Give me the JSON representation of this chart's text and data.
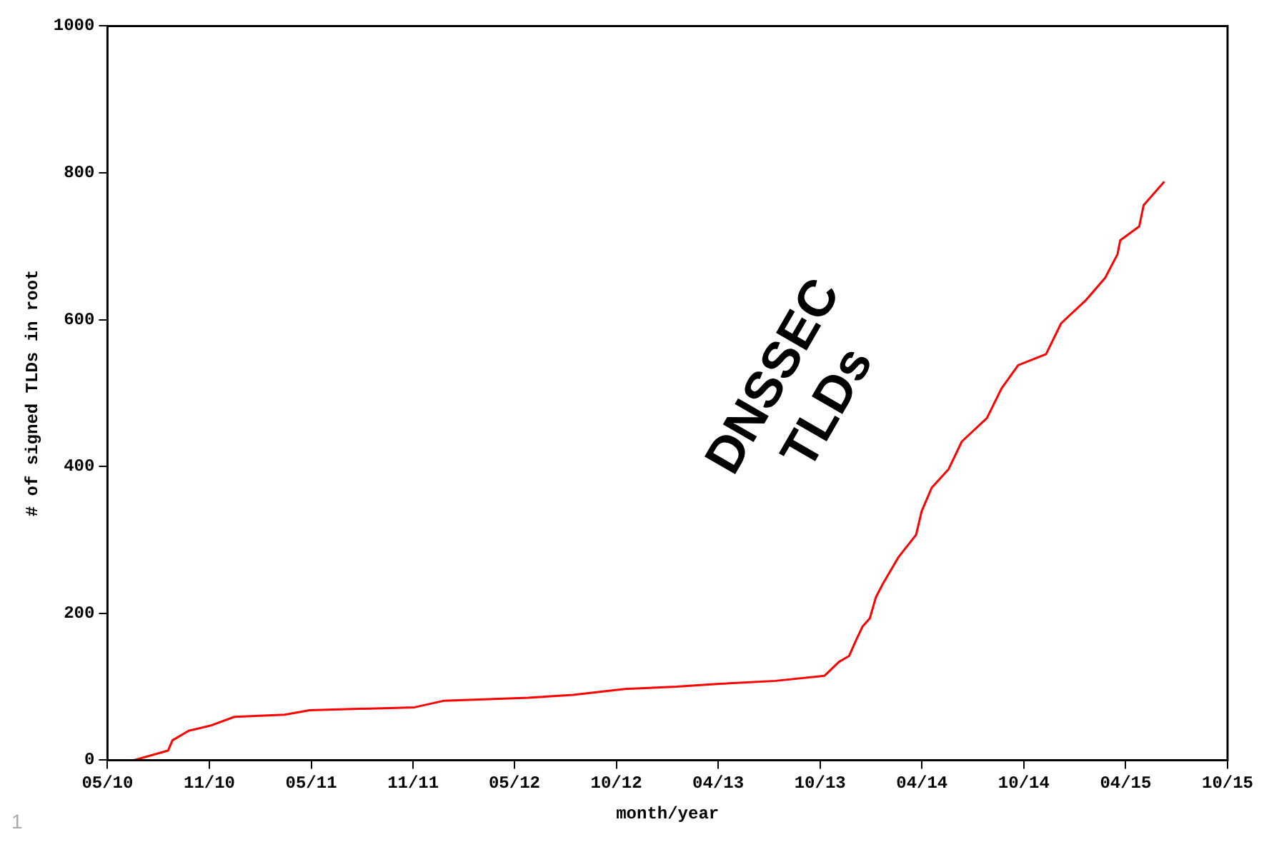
{
  "chart_data": {
    "type": "line",
    "xlabel": "month/year",
    "ylabel": "# of signed TLDs in root",
    "annotations": [
      "DNSSEC\nTLDs",
      "1"
    ],
    "x": [
      "2010-06-19",
      "2010-08-19",
      "2010-08-27",
      "2010-09-25",
      "2010-11-03",
      "2010-12-16",
      "2011-03-16",
      "2011-04-30",
      "2011-11-04",
      "2011-12-27",
      "2012-05-26",
      "2012-08-14",
      "2012-11-15",
      "2013-02-15",
      "2013-05-03",
      "2013-08-12",
      "2013-11-08",
      "2013-12-04",
      "2013-12-22",
      "2014-01-02",
      "2014-01-15",
      "2014-01-28",
      "2014-02-08",
      "2014-02-21",
      "2014-03-20",
      "2014-04-21",
      "2014-05-01",
      "2014-05-19",
      "2014-06-18",
      "2014-07-12",
      "2014-08-26",
      "2014-09-21",
      "2014-10-21",
      "2014-12-10",
      "2015-01-06",
      "2015-02-20",
      "2015-03-26",
      "2015-04-17",
      "2015-04-22",
      "2015-05-26",
      "2015-06-03",
      "2015-07-10"
    ],
    "series": [
      {
        "color": "#ff0000",
        "values": [
          0,
          13,
          27,
          40,
          47,
          59,
          62,
          68,
          72,
          81,
          85,
          89,
          97,
          100,
          104,
          108,
          115,
          134,
          142,
          161,
          182,
          193,
          222,
          241,
          276,
          307,
          339,
          371,
          396,
          434,
          466,
          506,
          538,
          553,
          595,
          627,
          657,
          689,
          708,
          727,
          756,
          788
        ]
      }
    ],
    "xlim": [
      "2010-05-02T12:00",
      "2015-10-31T09:00"
    ],
    "xticks": [
      {
        "value": "2010-05-02T12:00",
        "label": "05/10"
      },
      {
        "value": "2010-11-01T03:00",
        "label": "11/10"
      },
      {
        "value": "2011-05-02T18:00",
        "label": "05/11"
      },
      {
        "value": "2011-11-01T09:00",
        "label": "11/11"
      },
      {
        "value": "2012-05-01T00:00",
        "label": "05/12"
      },
      {
        "value": "2012-10-30T15:00",
        "label": "10/12"
      },
      {
        "value": "2013-05-01T06:00",
        "label": "04/13"
      },
      {
        "value": "2013-10-30T21:00",
        "label": "10/13"
      },
      {
        "value": "2014-05-01T12:00",
        "label": "04/14"
      },
      {
        "value": "2014-10-31T03:00",
        "label": "10/14"
      },
      {
        "value": "2015-05-01T18:00",
        "label": "04/15"
      },
      {
        "value": "2015-10-31T09:00",
        "label": "10/15"
      }
    ],
    "ylim": [
      0,
      1000
    ],
    "yticks": [
      0,
      200,
      400,
      600,
      800,
      1000
    ],
    "grid": false,
    "legend": false,
    "marker": "none",
    "line_style": "solid"
  }
}
